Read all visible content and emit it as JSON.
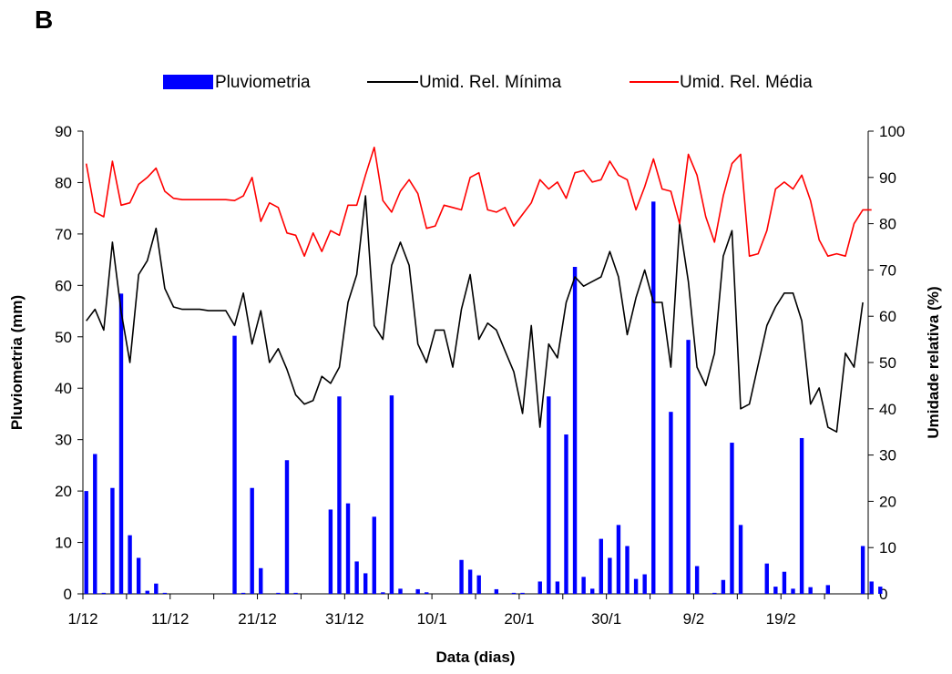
{
  "panel_label": "B",
  "chart_data": {
    "type": "bar+line",
    "title": "",
    "xlabel": "Data (dias)",
    "ylabel_left": "Pluviometria (mm)",
    "ylabel_right": "Umidade relativa (%)",
    "ylim_left": [
      0,
      90
    ],
    "ylim_right": [
      0,
      100
    ],
    "yticks_left": [
      "0",
      "10",
      "20",
      "30",
      "40",
      "50",
      "60",
      "70",
      "80",
      "90"
    ],
    "yticks_right": [
      "0",
      "10",
      "20",
      "30",
      "40",
      "50",
      "60",
      "70",
      "80",
      "90",
      "100"
    ],
    "x_tick_labels": [
      "1/12",
      "11/12",
      "21/12",
      "31/12",
      "10/1",
      "20/1",
      "30/1",
      "9/2",
      "19/2"
    ],
    "x_tick_day_index": [
      0,
      10,
      20,
      30,
      40,
      50,
      60,
      70,
      80
    ],
    "n_days": 90,
    "legend_position": "top",
    "grid": false,
    "colors": {
      "bars": "#0000ff",
      "min_line": "#000000",
      "mean_line": "#ff0000"
    },
    "series": [
      {
        "name": "Pluviometria",
        "kind": "bar",
        "axis": "left",
        "values": [
          20,
          27.2,
          0.2,
          20.6,
          58.4,
          11.4,
          7,
          0.6,
          2,
          0.2,
          0,
          0,
          0,
          0,
          0,
          0,
          0,
          50.2,
          0.2,
          20.6,
          5,
          0,
          0.2,
          26,
          0.2,
          0,
          0,
          0,
          16.4,
          38.4,
          17.6,
          6.3,
          4,
          15,
          0.3,
          38.6,
          1,
          0,
          0.9,
          0.3,
          0,
          0,
          0,
          6.6,
          4.7,
          3.6,
          0,
          0.9,
          0,
          0.2,
          0.2,
          0,
          2.4,
          38.4,
          2.4,
          31,
          63.6,
          3.3,
          1,
          10.7,
          7,
          13.4,
          9.3,
          2.9,
          3.8,
          76.3,
          0,
          35.4,
          0,
          49.4,
          5.4,
          0,
          0.2,
          2.7,
          29.4,
          13.4,
          0,
          0,
          5.9,
          1.4,
          4.3,
          1,
          30.3,
          1.3,
          0,
          1.7,
          0,
          0,
          0,
          9.3,
          2.4,
          1.4
        ]
      },
      {
        "name": "Umid. Rel. Mínima",
        "kind": "line",
        "axis": "right",
        "values": [
          59,
          61.5,
          57,
          76,
          61,
          50,
          69,
          72,
          79,
          66,
          62,
          61.5,
          61.5,
          61.5,
          61.2,
          61.2,
          61.2,
          58,
          65,
          54,
          61.2,
          50,
          53,
          48.5,
          43,
          41,
          41.8,
          47,
          45.5,
          49,
          63,
          69,
          86,
          58,
          55,
          71,
          76,
          71,
          54,
          50,
          57,
          57,
          49,
          61.5,
          69,
          55,
          58.5,
          57,
          52.5,
          48,
          39,
          58,
          36,
          54,
          51,
          63,
          68.5,
          66.5,
          67.5,
          68.5,
          74,
          68.5,
          56,
          64,
          70,
          63,
          63,
          49,
          80,
          67.5,
          49,
          45,
          52,
          73,
          78.5,
          40,
          41,
          49.5,
          58,
          62,
          65,
          65,
          59,
          41,
          44.5,
          36,
          35,
          52,
          49,
          63
        ]
      },
      {
        "name": "Umid. Rel. Média",
        "kind": "line",
        "axis": "right",
        "values": [
          93,
          82.5,
          81.5,
          93.5,
          84,
          84.5,
          88.5,
          90,
          92,
          87,
          85.5,
          85.2,
          85.2,
          85.2,
          85.2,
          85.2,
          85.2,
          85,
          86,
          90,
          80.5,
          84.5,
          83.5,
          78,
          77.5,
          73,
          78,
          74,
          78.5,
          77.5,
          84,
          84,
          90.5,
          96.5,
          85,
          82.5,
          87,
          89.5,
          86.5,
          79,
          79.5,
          84,
          83.5,
          83,
          90,
          91,
          83,
          82.5,
          83.5,
          79.5,
          82,
          84.5,
          89.5,
          87.5,
          89,
          85.5,
          91,
          91.5,
          89,
          89.5,
          93.5,
          90.5,
          89.5,
          83,
          88,
          94,
          87.5,
          87,
          80,
          95,
          90.5,
          81.5,
          76,
          86,
          93,
          95,
          73,
          73.5,
          78.5,
          87.5,
          89,
          87.5,
          90.5,
          85,
          76.5,
          73,
          73.5,
          73,
          80,
          83,
          83
        ]
      }
    ]
  }
}
